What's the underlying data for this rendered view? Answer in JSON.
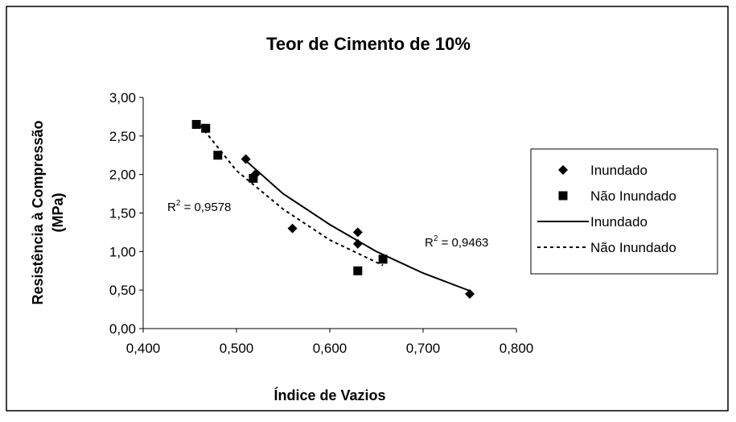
{
  "chart_data": {
    "type": "scatter",
    "title": "Teor de Cimento de 10%",
    "x_label": "Índice de Vazios",
    "y_label": [
      "Resistência à Compressão",
      "(MPa)"
    ],
    "xlim": [
      0.4,
      0.8
    ],
    "ylim": [
      0,
      3
    ],
    "xticks": [
      {
        "value": 0.4,
        "label": "0,400"
      },
      {
        "value": 0.5,
        "label": "0,500"
      },
      {
        "value": 0.6,
        "label": "0,600"
      },
      {
        "value": 0.7,
        "label": "0,700"
      },
      {
        "value": 0.8,
        "label": "0,800"
      }
    ],
    "yticks": [
      {
        "value": 0,
        "label": "0,00"
      },
      {
        "value": 0.5,
        "label": "0,50"
      },
      {
        "value": 1,
        "label": "1,00"
      },
      {
        "value": 1.5,
        "label": "1,50"
      },
      {
        "value": 2,
        "label": "2,00"
      },
      {
        "value": 2.5,
        "label": "2,50"
      },
      {
        "value": 3,
        "label": "3,00"
      }
    ],
    "series": [
      {
        "name": "Inundado",
        "color": "#000000",
        "marker": "diamond",
        "x": [
          0.51,
          0.52,
          0.56,
          0.63,
          0.63,
          0.75
        ],
        "values": [
          2.2,
          2.0,
          1.3,
          1.25,
          1.1,
          0.45
        ]
      },
      {
        "name": "Não Inundado",
        "color": "#000000",
        "marker": "square",
        "x": [
          0.457,
          0.467,
          0.48,
          0.518,
          0.63,
          0.657
        ],
        "values": [
          2.65,
          2.6,
          2.25,
          1.95,
          0.75,
          0.9
        ]
      },
      {
        "name": "Inundado",
        "color": "#000000",
        "line": "solid",
        "x": [
          0.51,
          0.55,
          0.6,
          0.65,
          0.7,
          0.75
        ],
        "values": [
          2.18,
          1.75,
          1.35,
          1.0,
          0.72,
          0.49
        ]
      },
      {
        "name": "Não Inundado",
        "color": "#000000",
        "line": "dashed",
        "x": [
          0.457,
          0.5,
          0.55,
          0.6,
          0.657
        ],
        "values": [
          2.7,
          2.05,
          1.55,
          1.15,
          0.82
        ]
      }
    ],
    "annotations": [
      {
        "base": "R",
        "sup": "2",
        "text": " = 0,9578"
      },
      {
        "base": "R",
        "sup": "2",
        "text": " = 0,9463"
      }
    ]
  }
}
